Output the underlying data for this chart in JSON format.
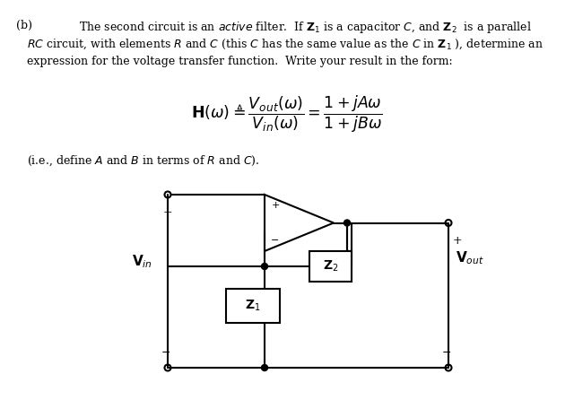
{
  "background_color": "#ffffff",
  "fig_width": 6.4,
  "fig_height": 4.46,
  "dpi": 100,
  "text_color": "#000000",
  "lw": 1.5,
  "fs_body": 9.0,
  "fs_eq": 12.5,
  "fs_circuit": 10.0
}
